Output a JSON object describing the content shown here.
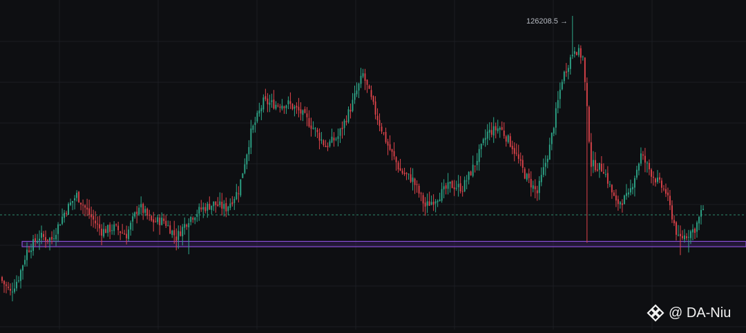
{
  "colors": {
    "background": "#0e0f12",
    "grid": "#1c1e23",
    "up": "#2ea88a",
    "down": "#e0444b",
    "support_zone": "#8a4fd6",
    "support_zone_fill": "#3a2060",
    "current_line": "#2e8b6e",
    "label": "#b8bcc4"
  },
  "watermark": {
    "text": "@ DA-Niu",
    "logo_icon": "binance-logo-icon"
  },
  "chart_data": {
    "type": "candlestick",
    "title": "",
    "xlabel": "",
    "ylabel": "",
    "grid": true,
    "ylim": [
      90800,
      128000
    ],
    "peak_label": "126208.5",
    "support_zone": [
      100150,
      100750
    ],
    "current_price_line": 103750,
    "anchors": [
      [
        0,
        96300
      ],
      [
        4,
        95000
      ],
      [
        8,
        96700
      ],
      [
        12,
        99700
      ],
      [
        18,
        101300
      ],
      [
        24,
        101000
      ],
      [
        30,
        104000
      ],
      [
        36,
        106000
      ],
      [
        42,
        103800
      ],
      [
        48,
        101900
      ],
      [
        54,
        102300
      ],
      [
        60,
        101500
      ],
      [
        66,
        104800
      ],
      [
        72,
        103000
      ],
      [
        78,
        103100
      ],
      [
        84,
        101200
      ],
      [
        90,
        103300
      ],
      [
        96,
        104400
      ],
      [
        102,
        105000
      ],
      [
        108,
        104500
      ],
      [
        114,
        106500
      ],
      [
        120,
        113000
      ],
      [
        126,
        116500
      ],
      [
        132,
        116200
      ],
      [
        138,
        116300
      ],
      [
        144,
        115300
      ],
      [
        150,
        113600
      ],
      [
        156,
        111500
      ],
      [
        162,
        112600
      ],
      [
        168,
        115800
      ],
      [
        174,
        119600
      ],
      [
        180,
        115300
      ],
      [
        186,
        111600
      ],
      [
        192,
        108700
      ],
      [
        198,
        107700
      ],
      [
        204,
        104700
      ],
      [
        210,
        105800
      ],
      [
        216,
        107100
      ],
      [
        222,
        106800
      ],
      [
        228,
        109500
      ],
      [
        234,
        113000
      ],
      [
        240,
        113600
      ],
      [
        246,
        111500
      ],
      [
        252,
        108300
      ],
      [
        258,
        106200
      ],
      [
        264,
        111400
      ],
      [
        270,
        119100
      ],
      [
        276,
        122600
      ],
      [
        280,
        121500
      ],
      [
        284,
        109500
      ],
      [
        290,
        108900
      ],
      [
        296,
        105000
      ],
      [
        302,
        105800
      ],
      [
        308,
        110500
      ],
      [
        314,
        108100
      ],
      [
        320,
        106300
      ],
      [
        326,
        101000
      ],
      [
        330,
        101500
      ],
      [
        334,
        102200
      ],
      [
        338,
        104500
      ]
    ],
    "special_wicks": [
      {
        "i": 275,
        "high": 126208.5
      },
      {
        "i": 282,
        "low": 100600
      },
      {
        "i": 60,
        "low": 100400
      },
      {
        "i": 90,
        "low": 99300
      },
      {
        "i": 327,
        "low": 99200
      },
      {
        "i": 331,
        "low": 99500
      }
    ]
  }
}
